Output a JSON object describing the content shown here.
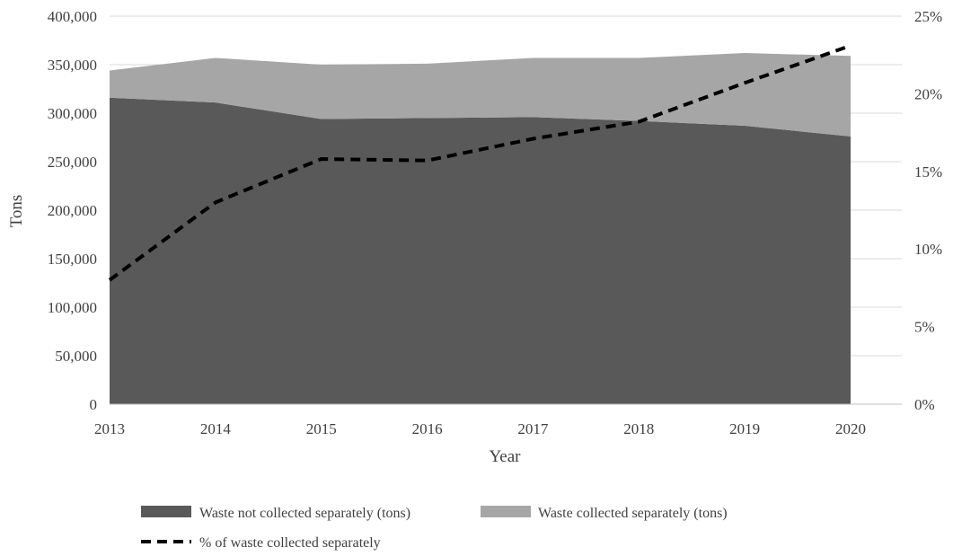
{
  "chart_data": {
    "type": "area",
    "xlabel": "Year",
    "ylabel": "Tons",
    "x": [
      2013,
      2014,
      2015,
      2016,
      2017,
      2018,
      2019,
      2020
    ],
    "x_tick_labels": [
      "2013",
      "2014",
      "2015",
      "2016",
      "2017",
      "2018",
      "2019",
      "2020"
    ],
    "ylim": [
      0,
      400000
    ],
    "y_tick_labels": [
      "0",
      "50,000",
      "100,000",
      "150,000",
      "200,000",
      "250,000",
      "300,000",
      "350,000",
      "400,000"
    ],
    "y2lim": [
      0,
      25
    ],
    "y2_tick_labels": [
      "0%",
      "5%",
      "10%",
      "15%",
      "20%",
      "25%"
    ],
    "stacked": true,
    "grid": "horizontal",
    "legend_position": "bottom",
    "series": [
      {
        "name": "Waste not collected separately (tons)",
        "kind": "area",
        "axis": "left",
        "color": "#595959",
        "values": [
          316000,
          311000,
          294000,
          295000,
          296000,
          292000,
          287000,
          276000
        ]
      },
      {
        "name": "Waste collected separately (tons)",
        "kind": "area",
        "axis": "left",
        "stacked_on": 0,
        "color": "#a6a6a6",
        "values": [
          28000,
          46000,
          56000,
          56000,
          61000,
          65000,
          75000,
          83000
        ]
      },
      {
        "name": "% of waste collected separately",
        "kind": "line",
        "axis": "right",
        "style": "dashed",
        "color": "#000000",
        "values": [
          8.0,
          13.0,
          15.8,
          15.7,
          17.1,
          18.2,
          20.7,
          23.1
        ]
      }
    ]
  }
}
